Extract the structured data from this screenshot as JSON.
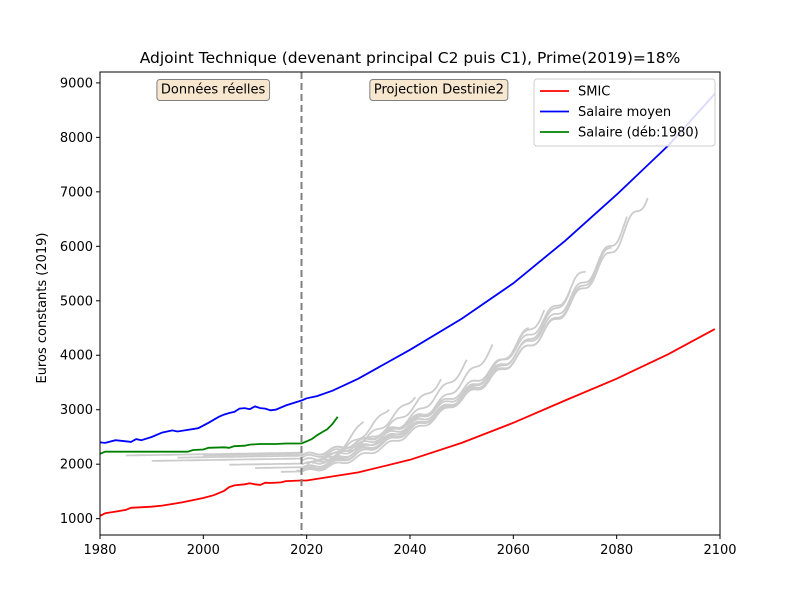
{
  "chart_data": {
    "type": "line",
    "title": "Adjoint Technique (devenant principal C2 puis C1), Prime(2019)=18%",
    "xlabel": "",
    "ylabel": "Euros constants (2019)",
    "xlim": [
      1980,
      2100
    ],
    "ylim": [
      700,
      9200
    ],
    "xticks": [
      1980,
      2000,
      2020,
      2040,
      2060,
      2080,
      2100
    ],
    "yticks": [
      1000,
      2000,
      3000,
      4000,
      5000,
      6000,
      7000,
      8000,
      9000
    ],
    "vline_x": 2019,
    "annotations": [
      {
        "text": "Données réelles",
        "x": 2012,
        "y": 8870
      },
      {
        "text": "Projection Destinie2",
        "x": 2033,
        "y": 8870
      }
    ],
    "legend_position": "top-right",
    "colors": {
      "smic": "#ff0000",
      "salaire_moyen": "#0000ff",
      "salaire_deb1980": "#008000",
      "careers": "#cccccc",
      "annotation_bg": "#f7e7cf"
    },
    "series": [
      {
        "name": "SMIC",
        "color": "#ff0000",
        "points": [
          [
            1980,
            1050
          ],
          [
            1981,
            1100
          ],
          [
            1983,
            1130
          ],
          [
            1985,
            1160
          ],
          [
            1986,
            1200
          ],
          [
            1990,
            1220
          ],
          [
            1992,
            1240
          ],
          [
            1994,
            1270
          ],
          [
            1996,
            1300
          ],
          [
            1998,
            1340
          ],
          [
            2000,
            1380
          ],
          [
            2002,
            1430
          ],
          [
            2004,
            1510
          ],
          [
            2005,
            1580
          ],
          [
            2006,
            1610
          ],
          [
            2008,
            1630
          ],
          [
            2009,
            1650
          ],
          [
            2010,
            1630
          ],
          [
            2011,
            1620
          ],
          [
            2012,
            1660
          ],
          [
            2013,
            1655
          ],
          [
            2015,
            1665
          ],
          [
            2016,
            1690
          ],
          [
            2019,
            1700
          ],
          [
            2020,
            1700
          ],
          [
            2030,
            1850
          ],
          [
            2040,
            2080
          ],
          [
            2050,
            2390
          ],
          [
            2060,
            2760
          ],
          [
            2070,
            3170
          ],
          [
            2080,
            3570
          ],
          [
            2090,
            4020
          ],
          [
            2099,
            4480
          ]
        ]
      },
      {
        "name": "Salaire moyen",
        "color": "#0000ff",
        "points": [
          [
            1980,
            2400
          ],
          [
            1981,
            2390
          ],
          [
            1983,
            2440
          ],
          [
            1985,
            2420
          ],
          [
            1986,
            2410
          ],
          [
            1987,
            2460
          ],
          [
            1988,
            2440
          ],
          [
            1990,
            2500
          ],
          [
            1992,
            2580
          ],
          [
            1994,
            2620
          ],
          [
            1995,
            2600
          ],
          [
            1997,
            2630
          ],
          [
            1999,
            2660
          ],
          [
            2001,
            2760
          ],
          [
            2003,
            2870
          ],
          [
            2004,
            2910
          ],
          [
            2005,
            2940
          ],
          [
            2006,
            2960
          ],
          [
            2007,
            3020
          ],
          [
            2008,
            3030
          ],
          [
            2009,
            3010
          ],
          [
            2010,
            3060
          ],
          [
            2011,
            3030
          ],
          [
            2012,
            3020
          ],
          [
            2013,
            2990
          ],
          [
            2014,
            3000
          ],
          [
            2016,
            3080
          ],
          [
            2018,
            3140
          ],
          [
            2019,
            3170
          ],
          [
            2020,
            3210
          ],
          [
            2022,
            3250
          ],
          [
            2025,
            3350
          ],
          [
            2030,
            3570
          ],
          [
            2040,
            4100
          ],
          [
            2050,
            4670
          ],
          [
            2060,
            5320
          ],
          [
            2070,
            6100
          ],
          [
            2080,
            6950
          ],
          [
            2090,
            7850
          ],
          [
            2099,
            8800
          ]
        ]
      },
      {
        "name": "Salaire (déb:1980)",
        "color": "#008000",
        "points": [
          [
            1980,
            2190
          ],
          [
            1981,
            2230
          ],
          [
            1985,
            2230
          ],
          [
            1990,
            2230
          ],
          [
            1995,
            2230
          ],
          [
            1997,
            2230
          ],
          [
            1998,
            2260
          ],
          [
            2000,
            2270
          ],
          [
            2001,
            2300
          ],
          [
            2004,
            2310
          ],
          [
            2005,
            2300
          ],
          [
            2006,
            2330
          ],
          [
            2008,
            2340
          ],
          [
            2009,
            2360
          ],
          [
            2011,
            2370
          ],
          [
            2014,
            2370
          ],
          [
            2016,
            2380
          ],
          [
            2019,
            2380
          ],
          [
            2020,
            2420
          ],
          [
            2021,
            2460
          ],
          [
            2022,
            2530
          ],
          [
            2023,
            2590
          ],
          [
            2024,
            2640
          ],
          [
            2025,
            2740
          ],
          [
            2026,
            2870
          ]
        ]
      }
    ],
    "career_curves": [
      {
        "start_year": 1985,
        "end_year": 2082,
        "start_value": 2160,
        "end_value": 6470
      },
      {
        "start_year": 1990,
        "end_year": 2079,
        "start_value": 2060,
        "end_value": 6000
      },
      {
        "start_year": 1995,
        "end_year": 2086,
        "start_value": 2120,
        "end_value": 6970
      },
      {
        "start_year": 2000,
        "end_year": 2074,
        "start_value": 2160,
        "end_value": 5580
      },
      {
        "start_year": 2005,
        "end_year": 2071,
        "start_value": 1990,
        "end_value": 5190
      },
      {
        "start_year": 2010,
        "end_year": 2066,
        "start_value": 1930,
        "end_value": 4810
      },
      {
        "start_year": 2015,
        "end_year": 2063,
        "start_value": 1860,
        "end_value": 4480
      },
      {
        "start_year": 2018,
        "end_year": 2056,
        "start_value": 1880,
        "end_value": 4150
      },
      {
        "start_year": 2019,
        "end_year": 2051,
        "start_value": 1910,
        "end_value": 3860
      },
      {
        "start_year": 2020,
        "end_year": 2046,
        "start_value": 2000,
        "end_value": 3560
      },
      {
        "start_year": 2021,
        "end_year": 2041,
        "start_value": 2020,
        "end_value": 3280
      },
      {
        "start_year": 2022,
        "end_year": 2036,
        "start_value": 2050,
        "end_value": 3050
      },
      {
        "start_year": 2023,
        "end_year": 2031,
        "start_value": 2080,
        "end_value": 2790
      }
    ]
  }
}
